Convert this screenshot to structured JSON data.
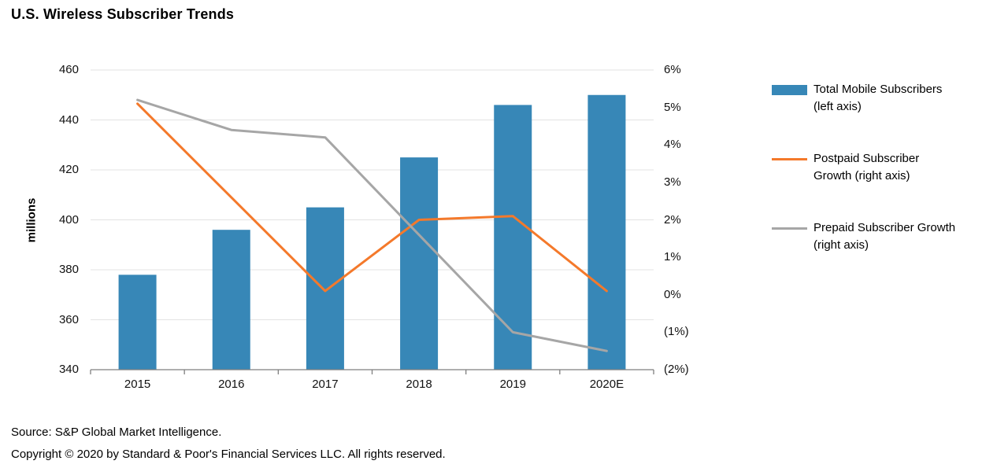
{
  "title": "U.S. Wireless Subscriber Trends",
  "footer": {
    "source": "Source: S&P Global Market Intelligence.",
    "copyright": "Copyright © 2020 by Standard & Poor's Financial Services LLC. All rights reserved."
  },
  "legend": [
    {
      "label": "Total Mobile Subscribers (left axis)",
      "label_lines": [
        "Total Mobile Subscribers",
        "(left axis)"
      ],
      "type": "bar",
      "color": "#3787B7"
    },
    {
      "label": "Postpaid Subscriber Growth (right axis)",
      "label_lines": [
        "Postpaid Subscriber",
        "Growth (right axis)"
      ],
      "type": "line",
      "color": "#F4792B"
    },
    {
      "label": "Prepaid Subscriber Growth (right axis)",
      "label_lines": [
        "Prepaid Subscriber Growth",
        "(right axis)"
      ],
      "type": "line",
      "color": "#A6A6A6"
    }
  ],
  "chart_data": {
    "type": "bar+line",
    "title": "U.S. Wireless Subscriber Trends",
    "categories": [
      "2015",
      "2016",
      "2017",
      "2018",
      "2019",
      "2020E"
    ],
    "series": [
      {
        "name": "Total Mobile Subscribers (left axis)",
        "type": "bar",
        "axis": "left",
        "color": "#3787B7",
        "values": [
          378,
          396,
          405,
          425,
          446,
          450
        ]
      },
      {
        "name": "Postpaid Subscriber Growth (right axis)",
        "type": "line",
        "axis": "right",
        "color": "#F4792B",
        "values": [
          5.1,
          2.6,
          0.1,
          2.0,
          2.1,
          0.1
        ]
      },
      {
        "name": "Prepaid Subscriber Growth (right axis)",
        "type": "line",
        "axis": "right",
        "color": "#A6A6A6",
        "values": [
          5.2,
          4.4,
          4.2,
          1.6,
          -1.0,
          -1.5
        ]
      }
    ],
    "left_axis": {
      "label": "millions",
      "min": 340,
      "max": 460,
      "ticks": [
        460,
        440,
        420,
        400,
        380,
        360,
        340
      ]
    },
    "right_axis": {
      "min": -2,
      "max": 6,
      "ticks": [
        "6%",
        "5%",
        "4%",
        "3%",
        "2%",
        "1%",
        "0%",
        "(1%)",
        "(2%)"
      ],
      "tick_values": [
        6,
        5,
        4,
        3,
        2,
        1,
        0,
        -1,
        -2
      ]
    },
    "grid": "horizontal",
    "legend_position": "right",
    "colors": {
      "grid": "#E3E3E3",
      "axis": "#7F7F7F"
    }
  }
}
